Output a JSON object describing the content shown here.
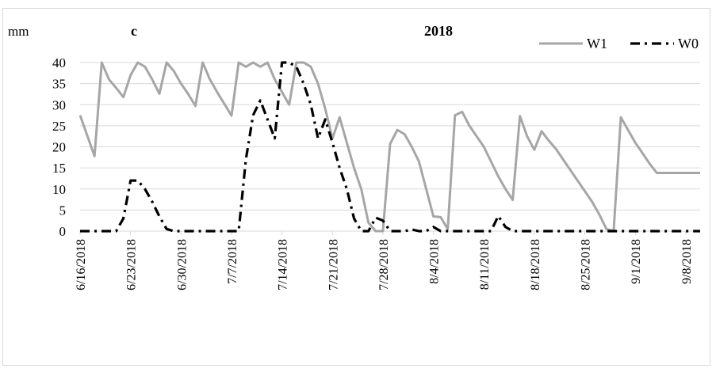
{
  "chart_data": {
    "type": "line",
    "panel_label": "c",
    "title": "2018",
    "ylabel": "mm",
    "xlabel": "",
    "ylim": [
      0,
      40
    ],
    "y_ticks": [
      0,
      5,
      10,
      15,
      20,
      25,
      30,
      35,
      40
    ],
    "x_tick_labels": [
      "6/16/2018",
      "6/23/2018",
      "6/30/2018",
      "7/7/2018",
      "7/14/2018",
      "7/21/2018",
      "7/28/2018",
      "8/4/2018",
      "8/11/2018",
      "8/18/2018",
      "8/25/2018",
      "9/1/2018",
      "9/8/2018"
    ],
    "x_start": "6/16/2018",
    "x_end": "9/10/2018",
    "grid": true,
    "legend": "top-right",
    "series": [
      {
        "name": "W1",
        "color": "#a6a6a6",
        "style": "solid",
        "x": [
          "6/16/2018",
          "6/18/2018",
          "6/19/2018",
          "6/20/2018",
          "6/21/2018",
          "6/22/2018",
          "6/23/2018",
          "6/24/2018",
          "6/25/2018",
          "6/26/2018",
          "6/27/2018",
          "6/28/2018",
          "6/29/2018",
          "6/30/2018",
          "7/1/2018",
          "7/2/2018",
          "7/3/2018",
          "7/4/2018",
          "7/5/2018",
          "7/7/2018",
          "7/8/2018",
          "7/9/2018",
          "7/10/2018",
          "7/11/2018",
          "7/12/2018",
          "7/13/2018",
          "7/14/2018",
          "7/15/2018",
          "7/16/2018",
          "7/17/2018",
          "7/18/2018",
          "7/19/2018",
          "7/20/2018",
          "7/21/2018",
          "7/22/2018",
          "7/23/2018",
          "7/24/2018",
          "7/25/2018",
          "7/26/2018",
          "7/27/2018",
          "7/28/2018",
          "7/29/2018",
          "7/30/2018",
          "7/31/2018",
          "8/1/2018",
          "8/2/2018",
          "8/3/2018",
          "8/4/2018",
          "8/5/2018",
          "8/6/2018",
          "8/7/2018",
          "8/8/2018",
          "8/9/2018",
          "8/10/2018",
          "8/11/2018",
          "8/12/2018",
          "8/13/2018",
          "8/14/2018",
          "8/15/2018",
          "8/16/2018",
          "8/17/2018",
          "8/18/2018",
          "8/19/2018",
          "8/20/2018",
          "8/21/2018",
          "8/22/2018",
          "8/23/2018",
          "8/24/2018",
          "8/25/2018",
          "8/26/2018",
          "8/27/2018",
          "8/28/2018",
          "8/29/2018",
          "8/30/2018",
          "8/31/2018",
          "9/1/2018",
          "9/2/2018",
          "9/3/2018",
          "9/4/2018",
          "9/5/2018",
          "9/6/2018",
          "9/7/2018",
          "9/8/2018",
          "9/9/2018",
          "9/10/2018"
        ],
        "y": [
          27.5,
          17.8,
          40,
          36,
          34,
          31.8,
          37,
          40,
          39,
          36,
          32.6,
          40,
          38,
          35,
          32.5,
          29.7,
          40,
          36,
          33,
          27.4,
          40,
          39,
          40,
          39,
          40,
          36,
          33,
          30,
          40,
          40,
          39,
          35,
          29,
          22,
          27,
          21,
          15,
          10,
          2,
          0,
          0,
          20.7,
          24,
          23,
          20,
          16.5,
          10,
          3.5,
          3.3,
          0.5,
          27.5,
          28.3,
          25,
          22.5,
          20,
          16.5,
          13,
          10,
          7.4,
          27.3,
          22.5,
          19.3,
          23.7,
          21.5,
          19.5,
          17,
          14.5,
          12,
          9.5,
          7,
          4,
          0.5,
          0,
          27,
          24,
          21,
          18.5,
          16,
          13.8,
          13.8,
          13.8,
          13.8,
          13.8,
          13.8,
          13.8
        ],
        "note": ""
      },
      {
        "name": "W0",
        "color": "#000000",
        "style": "dash-dot",
        "x": [
          "6/16/2018",
          "6/21/2018",
          "6/22/2018",
          "6/23/2018",
          "6/24/2018",
          "6/25/2018",
          "6/26/2018",
          "6/27/2018",
          "6/28/2018",
          "6/29/2018",
          "6/30/2018",
          "7/1/2018",
          "7/6/2018",
          "7/7/2018",
          "7/8/2018",
          "7/9/2018",
          "7/10/2018",
          "7/11/2018",
          "7/12/2018",
          "7/13/2018",
          "7/14/2018",
          "7/15/2018",
          "7/16/2018",
          "7/17/2018",
          "7/18/2018",
          "7/19/2018",
          "7/20/2018",
          "7/21/2018",
          "7/22/2018",
          "7/23/2018",
          "7/24/2018",
          "7/25/2018",
          "7/26/2018",
          "7/27/2018",
          "7/28/2018",
          "7/29/2018",
          "7/30/2018",
          "7/31/2018",
          "8/1/2018",
          "8/2/2018",
          "8/3/2018",
          "8/4/2018",
          "8/5/2018",
          "8/12/2018",
          "8/13/2018",
          "8/14/2018",
          "8/15/2018",
          "8/22/2018",
          "8/23/2018",
          "8/24/2018",
          "8/25/2018",
          "8/26/2018",
          "8/27/2018",
          "9/10/2018"
        ],
        "y": [
          0,
          0,
          3,
          12,
          12,
          10,
          7,
          3.5,
          0.5,
          0,
          0,
          0,
          0,
          0,
          0,
          17,
          27.5,
          31,
          26.5,
          22,
          40,
          40,
          39,
          35,
          30,
          22,
          26.5,
          21,
          15,
          10,
          3,
          0,
          0,
          3.2,
          2.5,
          0,
          0,
          0,
          0.4,
          0,
          0,
          1,
          0,
          0,
          3.6,
          1,
          0,
          0,
          0,
          0,
          0,
          0,
          0,
          0
        ]
      }
    ]
  }
}
